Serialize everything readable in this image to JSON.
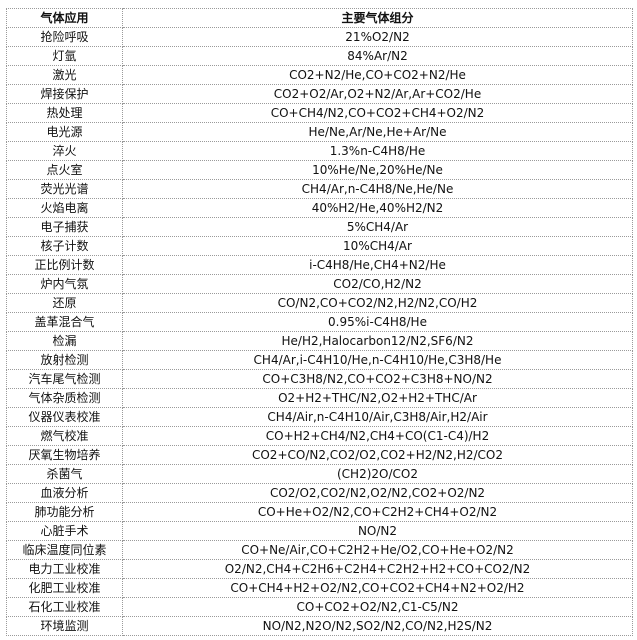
{
  "table": {
    "headers": [
      "气体应用",
      "主要气体组分"
    ],
    "rows": [
      [
        "抢险呼吸",
        "21%O2/N2"
      ],
      [
        "灯氩",
        "84%Ar/N2"
      ],
      [
        "激光",
        "CO2+N2/He,CO+CO2+N2/He"
      ],
      [
        "焊接保护",
        "CO2+O2/Ar,O2+N2/Ar,Ar+CO2/He"
      ],
      [
        "热处理",
        "CO+CH4/N2,CO+CO2+CH4+O2/N2"
      ],
      [
        "电光源",
        "He/Ne,Ar/Ne,He+Ar/Ne"
      ],
      [
        "淬火",
        "1.3%n-C4H8/He"
      ],
      [
        "点火室",
        "10%He/Ne,20%He/Ne"
      ],
      [
        "荧光光谱",
        "CH4/Ar,n-C4H8/Ne,He/Ne"
      ],
      [
        "火焰电离",
        "40%H2/He,40%H2/N2"
      ],
      [
        "电子捕获",
        "5%CH4/Ar"
      ],
      [
        "核子计数",
        "10%CH4/Ar"
      ],
      [
        "正比例计数",
        "i-C4H8/He,CH4+N2/He"
      ],
      [
        "炉内气氛",
        "CO2/CO,H2/N2"
      ],
      [
        "还原",
        "CO/N2,CO+CO2/N2,H2/N2,CO/H2"
      ],
      [
        "盖革混合气",
        "0.95%i-C4H8/He"
      ],
      [
        "检漏",
        "He/H2,Halocarbon12/N2,SF6/N2"
      ],
      [
        "放射检测",
        "CH4/Ar,i-C4H10/He,n-C4H10/He,C3H8/He"
      ],
      [
        "汽车尾气检测",
        "CO+C3H8/N2,CO+CO2+C3H8+NO/N2"
      ],
      [
        "气体杂质检测",
        "O2+H2+THC/N2,O2+H2+THC/Ar"
      ],
      [
        "仪器仪表校准",
        "CH4/Air,n-C4H10/Air,C3H8/Air,H2/Air"
      ],
      [
        "燃气校准",
        "CO+H2+CH4/N2,CH4+CO(C1-C4)/H2"
      ],
      [
        "厌氧生物培养",
        "CO2+CO/N2,CO2/O2,CO2+H2/N2,H2/CO2"
      ],
      [
        "杀菌气",
        "(CH2)2O/CO2"
      ],
      [
        "血液分析",
        "CO2/O2,CO2/N2,O2/N2,CO2+O2/N2"
      ],
      [
        "肺功能分析",
        "CO+He+O2/N2,CO+C2H2+CH4+O2/N2"
      ],
      [
        "心脏手术",
        "NO/N2"
      ],
      [
        "临床温度同位素",
        "CO+Ne/Air,CO+C2H2+He/O2,CO+He+O2/N2"
      ],
      [
        "电力工业校准",
        "O2/N2,CH4+C2H6+C2H4+C2H2+H2+CO+CO2/N2"
      ],
      [
        "化肥工业校准",
        "CO+CH4+H2+O2/N2,CO+CO2+CH4+N2+O2/H2"
      ],
      [
        "石化工业校准",
        "CO+CO2+O2/N2,C1-C5/N2"
      ],
      [
        "环境监测",
        "NO/N2,N2O/N2,SO2/N2,CO/N2,H2S/N2"
      ]
    ]
  }
}
